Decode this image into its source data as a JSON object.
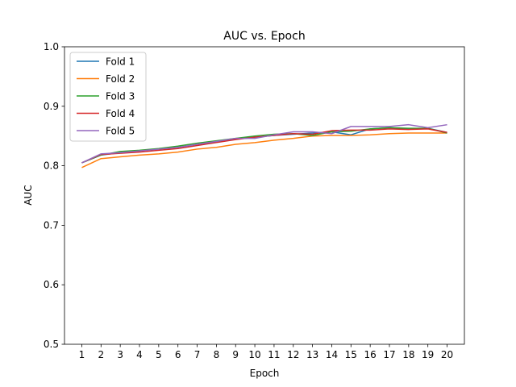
{
  "chart_data": {
    "type": "line",
    "title": "AUC vs. Epoch",
    "xlabel": "Epoch",
    "ylabel": "AUC",
    "xlim": [
      0.1,
      20.9
    ],
    "ylim": [
      0.5,
      1.0
    ],
    "xticks": [
      1,
      2,
      3,
      4,
      5,
      6,
      7,
      8,
      9,
      10,
      11,
      12,
      13,
      14,
      15,
      16,
      17,
      18,
      19,
      20
    ],
    "yticks": [
      0.5,
      0.6,
      0.7,
      0.8,
      0.9,
      1.0
    ],
    "ytick_labels": [
      "0.5",
      "0.6",
      "0.7",
      "0.8",
      "0.9",
      "1.0"
    ],
    "grid": false,
    "legend_position": "top-left",
    "x": [
      1,
      2,
      3,
      4,
      5,
      6,
      7,
      8,
      9,
      10,
      11,
      12,
      13,
      14,
      15,
      16,
      17,
      18,
      19,
      20
    ],
    "series": [
      {
        "name": "Fold 1",
        "color": "#1f77b4",
        "values": [
          0.805,
          0.818,
          0.822,
          0.825,
          0.828,
          0.831,
          0.836,
          0.84,
          0.845,
          0.848,
          0.851,
          0.853,
          0.855,
          0.857,
          0.852,
          0.862,
          0.864,
          0.862,
          0.863,
          0.856
        ]
      },
      {
        "name": "Fold 2",
        "color": "#ff7f0e",
        "values": [
          0.797,
          0.812,
          0.815,
          0.818,
          0.82,
          0.823,
          0.828,
          0.831,
          0.836,
          0.839,
          0.843,
          0.846,
          0.85,
          0.851,
          0.851,
          0.852,
          0.854,
          0.855,
          0.855,
          0.855
        ]
      },
      {
        "name": "Fold 3",
        "color": "#2ca02c",
        "values": [
          0.805,
          0.818,
          0.824,
          0.826,
          0.829,
          0.833,
          0.838,
          0.842,
          0.846,
          0.85,
          0.853,
          0.854,
          0.851,
          0.857,
          0.858,
          0.862,
          0.864,
          0.863,
          0.863,
          0.855
        ]
      },
      {
        "name": "Fold 4",
        "color": "#d62728",
        "values": [
          0.805,
          0.819,
          0.821,
          0.823,
          0.826,
          0.829,
          0.834,
          0.839,
          0.844,
          0.848,
          0.851,
          0.854,
          0.853,
          0.859,
          0.86,
          0.86,
          0.862,
          0.861,
          0.862,
          0.856
        ]
      },
      {
        "name": "Fold 5",
        "color": "#9467bd",
        "values": [
          0.805,
          0.82,
          0.822,
          0.825,
          0.828,
          0.831,
          0.836,
          0.841,
          0.846,
          0.846,
          0.852,
          0.857,
          0.857,
          0.854,
          0.866,
          0.866,
          0.866,
          0.869,
          0.864,
          0.869
        ]
      }
    ]
  }
}
